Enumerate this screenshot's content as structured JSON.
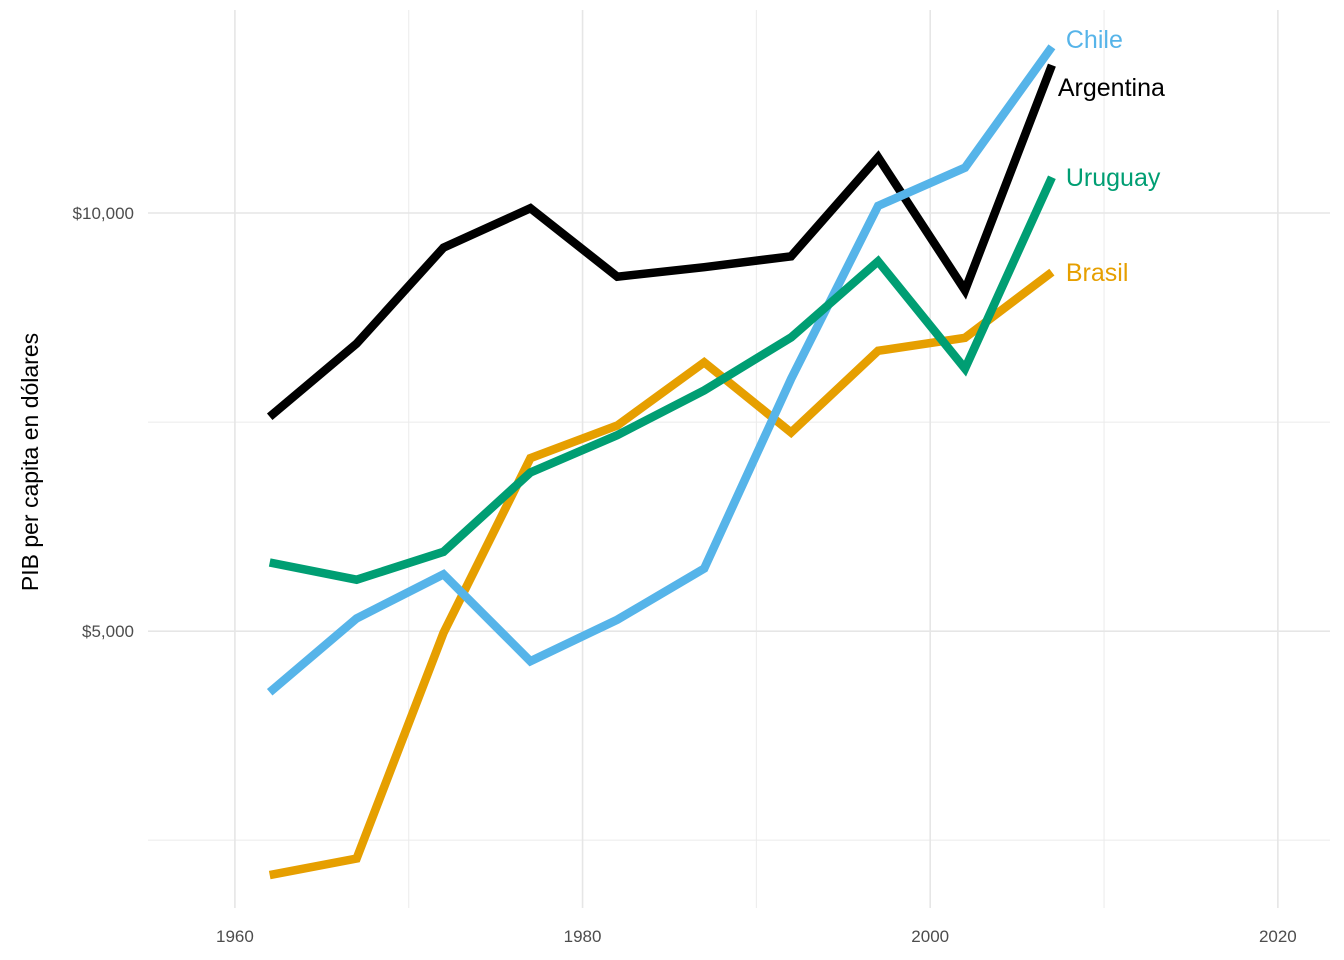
{
  "chart_data": {
    "type": "line",
    "title": "",
    "xlabel": "",
    "ylabel": "PIB per capita en dólares",
    "y_scale": "log",
    "xlim": [
      1955,
      2023
    ],
    "ylim": [
      3160,
      14000
    ],
    "x_ticks": [
      1960,
      1980,
      2000,
      2020
    ],
    "x_tick_labels": [
      "1960",
      "1980",
      "2000",
      "2020"
    ],
    "y_ticks": [
      5000,
      10000
    ],
    "y_tick_labels": [
      "$5,000",
      "$10,000"
    ],
    "y_minor_gridlines": [
      3536,
      7071,
      14142
    ],
    "grid": true,
    "legend": "direct labels at line ends",
    "series": [
      {
        "name": "Argentina",
        "color": "#000000",
        "x": [
          1962,
          1967,
          1972,
          1977,
          1982,
          1987,
          1992,
          1997,
          2002,
          2007
        ],
        "y": [
          7133,
          8053,
          9443,
          10079,
          8998,
          9140,
          9308,
          10967,
          8798,
          12779
        ]
      },
      {
        "name": "Brasil",
        "color": "#E69F00",
        "x": [
          1962,
          1967,
          1972,
          1977,
          1982,
          1987,
          1992,
          1997,
          2002,
          2007
        ],
        "y": [
          3337,
          3430,
          4986,
          6660,
          7031,
          7807,
          6950,
          7958,
          8131,
          9066
        ]
      },
      {
        "name": "Chile",
        "color": "#56B4E9",
        "x": [
          1962,
          1967,
          1972,
          1977,
          1982,
          1987,
          1992,
          1997,
          2002,
          2007
        ],
        "y": [
          4519,
          5107,
          5494,
          4757,
          5096,
          5547,
          7596,
          10118,
          10779,
          13172
        ]
      },
      {
        "name": "Uruguay",
        "color": "#009E73",
        "x": [
          1962,
          1967,
          1972,
          1977,
          1982,
          1987,
          1992,
          1997,
          2002,
          2007
        ],
        "y": [
          5603,
          5445,
          5703,
          6504,
          6920,
          7452,
          8137,
          9231,
          7727,
          10611
        ]
      }
    ]
  }
}
